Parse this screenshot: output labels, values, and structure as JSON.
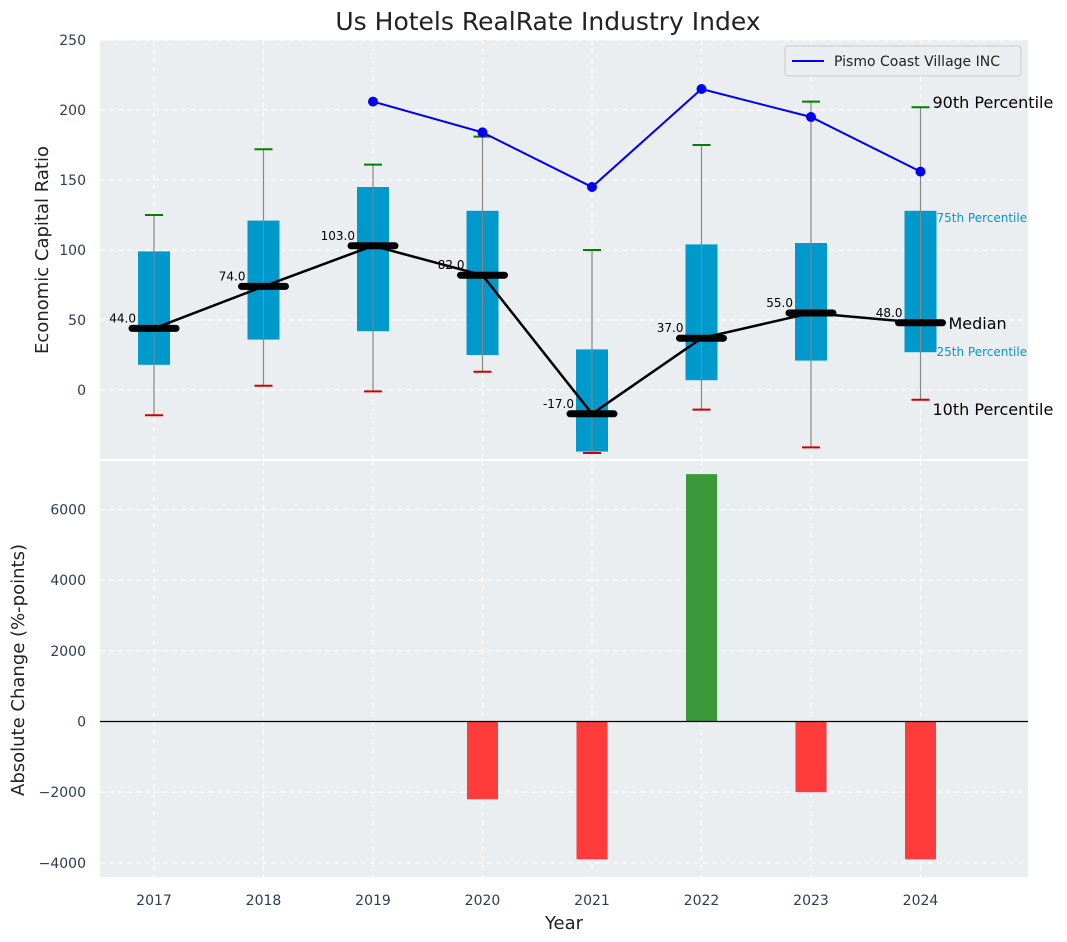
{
  "colors": {
    "plot_bg": "#eaeef0",
    "grid": "#ffffff",
    "box": "#0099cc",
    "whisker": "#888888",
    "p90_cap": "#008000",
    "p10_cap": "#cc0000",
    "median": "#000000",
    "company": "#0000ee",
    "bar_pos": "#3a9a3a",
    "bar_neg": "#ff3b3b",
    "tick_text": "#2c3e50",
    "pct_label": "#0099cc"
  },
  "chart_data": [
    {
      "type": "box",
      "title": "Us Hotels RealRate Industry Index",
      "xlabel": "",
      "ylabel": "Economic Capital Ratio",
      "ylim": [
        -50,
        250
      ],
      "yticks": [
        0,
        50,
        100,
        150,
        200,
        250
      ],
      "ytick_labels": [
        "0",
        "50",
        "100",
        "150",
        "200",
        "250"
      ],
      "categories": [
        "2017",
        "2018",
        "2019",
        "2020",
        "2021",
        "2022",
        "2023",
        "2024"
      ],
      "p10": [
        -18,
        3,
        -1,
        13,
        -45,
        -14,
        -41,
        -7
      ],
      "p25": [
        18,
        36,
        42,
        25,
        -44,
        7,
        21,
        27
      ],
      "median": [
        44,
        74,
        103,
        82,
        -17,
        37,
        55,
        48
      ],
      "p75": [
        99,
        121,
        145,
        128,
        29,
        104,
        105,
        128
      ],
      "p90": [
        125,
        172,
        161,
        181,
        100,
        175,
        206,
        202
      ],
      "median_labels": [
        "44.0",
        "74.0",
        "103.0",
        "82.0",
        "-17.0",
        "37.0",
        "55.0",
        "48.0"
      ],
      "series": [
        {
          "name": "Pismo Coast Village INC",
          "categories": [
            "2019",
            "2020",
            "2021",
            "2022",
            "2023",
            "2024"
          ],
          "values": [
            206,
            184,
            145,
            215,
            195,
            156
          ]
        }
      ],
      "legend": {
        "entries": [
          "Pismo Coast Village INC"
        ],
        "position": "top-right"
      },
      "annotations": {
        "p90": "90th Percentile",
        "p75": "75th Percentile",
        "median": "Median",
        "p25": "25th Percentile",
        "p10": "10th Percentile"
      },
      "grid": true
    },
    {
      "type": "bar",
      "xlabel": "Year",
      "ylabel": "Absolute Change (%-points)",
      "ylim": [
        -4400,
        7400
      ],
      "yticks": [
        -4000,
        -2000,
        0,
        2000,
        4000,
        6000
      ],
      "ytick_labels": [
        "−4000",
        "−2000",
        "0",
        "2000",
        "4000",
        "6000"
      ],
      "categories": [
        "2017",
        "2018",
        "2019",
        "2020",
        "2021",
        "2022",
        "2023",
        "2024"
      ],
      "values": [
        0,
        0,
        0,
        -2200,
        -3900,
        7000,
        -2000,
        -3900
      ],
      "grid": true
    }
  ]
}
